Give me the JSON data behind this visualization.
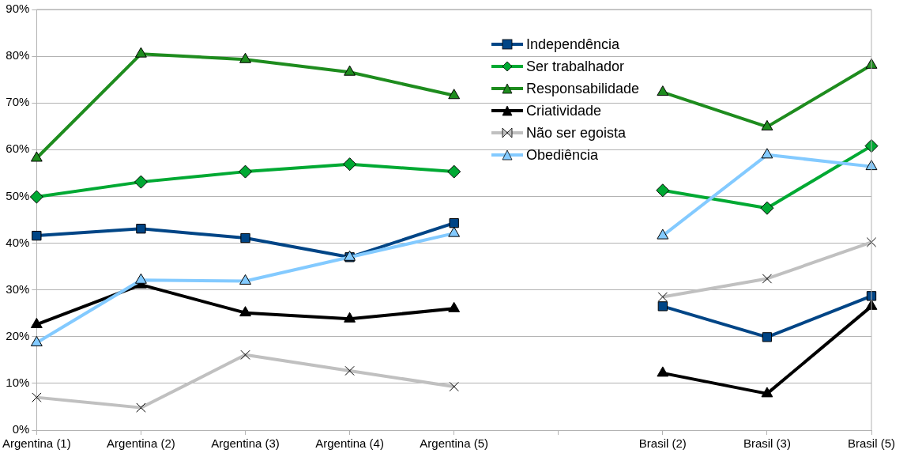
{
  "chart_data": {
    "type": "line",
    "categories": [
      "Argentina (1)",
      "Argentina (2)",
      "Argentina (3)",
      "Argentina (4)",
      "Argentina (5)",
      null,
      "Brasil (2)",
      "Brasil (3)",
      "Brasil (5)"
    ],
    "ylim": [
      0,
      90
    ],
    "yticks": [
      {
        "value": 0,
        "label": "0%"
      },
      {
        "value": 10,
        "label": "10%"
      },
      {
        "value": 20,
        "label": "20%"
      },
      {
        "value": 30,
        "label": "30%"
      },
      {
        "value": 40,
        "label": "40%"
      },
      {
        "value": 50,
        "label": "50%"
      },
      {
        "value": 60,
        "label": "60%"
      },
      {
        "value": 70,
        "label": "70%"
      },
      {
        "value": 80,
        "label": "80%"
      },
      {
        "value": 90,
        "label": "90%"
      }
    ],
    "grid": "y",
    "legend": "top right",
    "series": [
      {
        "name": "Independência",
        "color": "#004586",
        "marker": "square",
        "values": [
          41.6,
          43.1,
          41.1,
          37.0,
          44.3,
          null,
          26.5,
          19.9,
          28.7
        ]
      },
      {
        "name": "Ser trabalhador",
        "color": "#00a933",
        "marker": "diamond",
        "values": [
          49.9,
          53.1,
          55.3,
          56.9,
          55.3,
          null,
          51.3,
          47.5,
          60.8
        ]
      },
      {
        "name": "Responsabilidade",
        "color": "#1e8c1e",
        "marker": "triangle",
        "values": [
          58.2,
          80.5,
          79.3,
          76.6,
          71.6,
          null,
          72.3,
          64.9,
          78.1
        ]
      },
      {
        "name": "Criatividade",
        "color": "#000000",
        "marker": "triangle",
        "values": [
          22.6,
          31.1,
          25.1,
          23.8,
          26.0,
          null,
          12.2,
          7.8,
          26.5
        ]
      },
      {
        "name": "Não ser egoista",
        "color": "#c0c0c0",
        "marker": "cross",
        "values": [
          7.0,
          4.8,
          16.1,
          12.7,
          9.3,
          null,
          28.5,
          32.4,
          40.2
        ]
      },
      {
        "name": "Obediência",
        "color": "#83caff",
        "marker": "triangle",
        "values": [
          18.7,
          32.1,
          31.9,
          37.0,
          42.1,
          null,
          41.6,
          58.9,
          56.4
        ]
      }
    ]
  }
}
